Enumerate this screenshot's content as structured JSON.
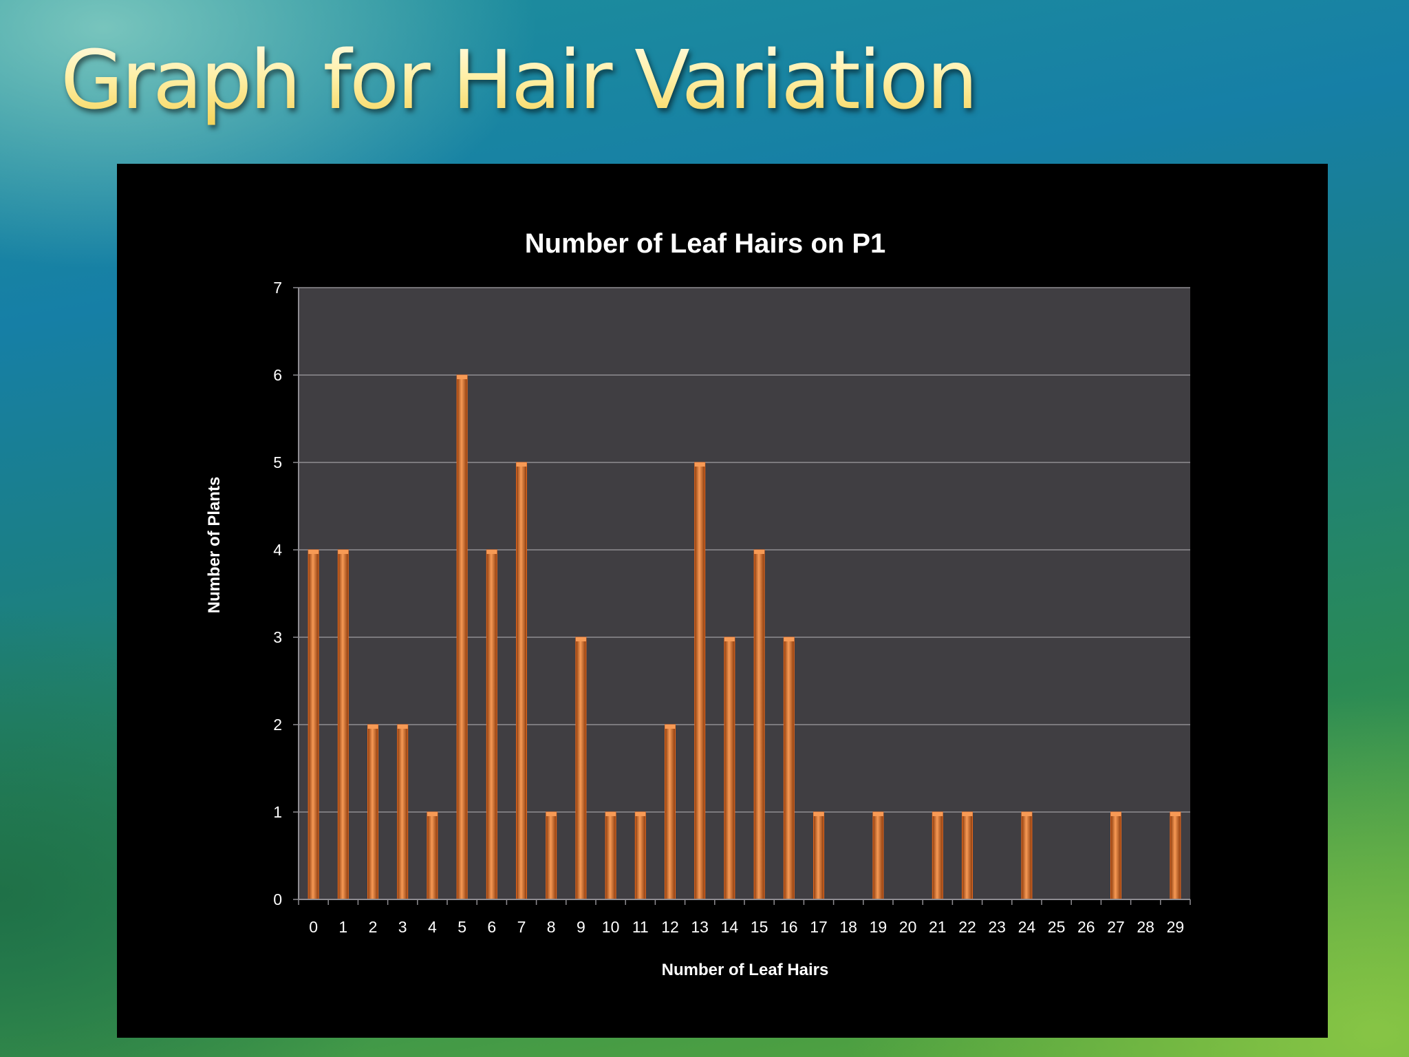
{
  "slide": {
    "title": "Graph for Hair Variation"
  },
  "chart_data": {
    "type": "bar",
    "title": "Number of Leaf Hairs on P1",
    "xlabel": "Number of Leaf Hairs",
    "ylabel": "Number of Plants",
    "ylim": [
      0,
      7
    ],
    "yticks": [
      0,
      1,
      2,
      3,
      4,
      5,
      6,
      7
    ],
    "grid": true,
    "legend": "none",
    "categories": [
      "0",
      "1",
      "2",
      "3",
      "4",
      "5",
      "6",
      "7",
      "8",
      "9",
      "10",
      "11",
      "12",
      "13",
      "14",
      "15",
      "16",
      "17",
      "18",
      "19",
      "20",
      "21",
      "22",
      "23",
      "24",
      "25",
      "26",
      "27",
      "28",
      "29"
    ],
    "values": [
      4,
      4,
      2,
      2,
      1,
      6,
      4,
      5,
      1,
      3,
      1,
      1,
      2,
      5,
      3,
      4,
      3,
      1,
      0,
      1,
      0,
      1,
      1,
      0,
      1,
      0,
      0,
      1,
      0,
      1
    ],
    "colors": {
      "bar": "#e8691e",
      "bar_highlight": "#f79a55",
      "bar_dark": "#8a3a0c",
      "plot_bg": "#403e42",
      "grid": "#8f8d92",
      "text": "#ffffff"
    }
  }
}
